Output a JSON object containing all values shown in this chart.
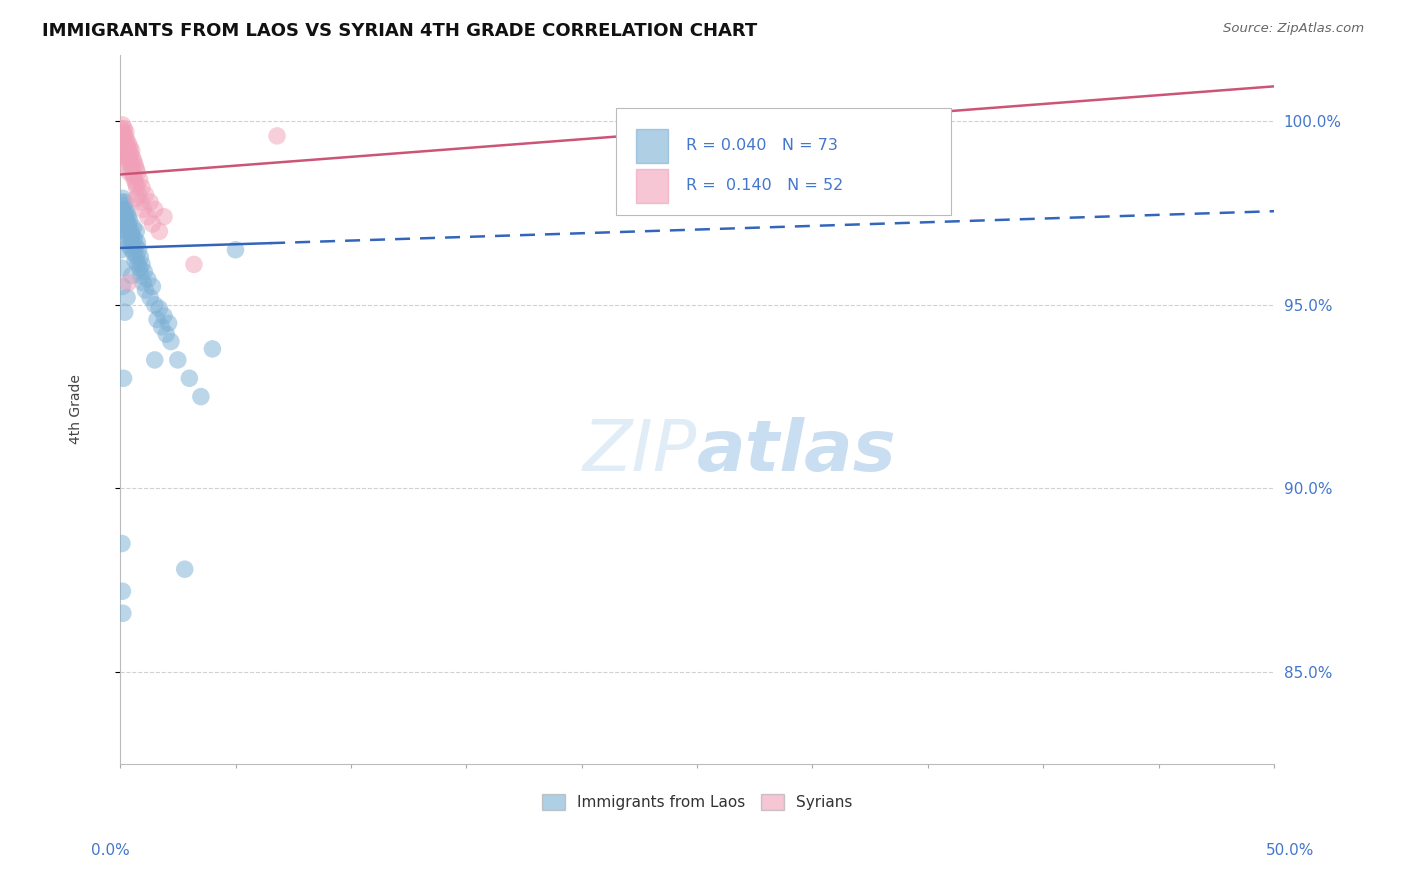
{
  "title": "IMMIGRANTS FROM LAOS VS SYRIAN 4TH GRADE CORRELATION CHART",
  "source": "Source: ZipAtlas.com",
  "ylabel": "4th Grade",
  "xlim": [
    0.0,
    50.0
  ],
  "ylim": [
    82.5,
    101.8
  ],
  "yticks": [
    85.0,
    90.0,
    95.0,
    100.0
  ],
  "R_laos": 0.04,
  "N_laos": 73,
  "R_syrian": 0.14,
  "N_syrian": 52,
  "blue_color": "#7bafd4",
  "pink_color": "#f0a0b8",
  "trend_blue": "#3366bb",
  "trend_pink": "#cc5577",
  "tick_color": "#4477cc",
  "background": "#ffffff",
  "grid_color": "#cccccc",
  "laos_points": [
    [
      0.05,
      97.8
    ],
    [
      0.08,
      97.5
    ],
    [
      0.1,
      97.6
    ],
    [
      0.1,
      97.2
    ],
    [
      0.12,
      97.9
    ],
    [
      0.15,
      97.7
    ],
    [
      0.15,
      97.3
    ],
    [
      0.18,
      97.5
    ],
    [
      0.2,
      97.8
    ],
    [
      0.2,
      97.2
    ],
    [
      0.22,
      97.4
    ],
    [
      0.25,
      97.6
    ],
    [
      0.25,
      97.0
    ],
    [
      0.28,
      97.3
    ],
    [
      0.3,
      97.5
    ],
    [
      0.3,
      96.8
    ],
    [
      0.32,
      97.1
    ],
    [
      0.35,
      97.4
    ],
    [
      0.35,
      96.9
    ],
    [
      0.38,
      97.2
    ],
    [
      0.4,
      97.0
    ],
    [
      0.4,
      96.6
    ],
    [
      0.42,
      97.3
    ],
    [
      0.45,
      96.8
    ],
    [
      0.48,
      97.0
    ],
    [
      0.5,
      96.5
    ],
    [
      0.52,
      96.9
    ],
    [
      0.55,
      96.7
    ],
    [
      0.58,
      97.1
    ],
    [
      0.6,
      96.4
    ],
    [
      0.62,
      96.8
    ],
    [
      0.65,
      96.2
    ],
    [
      0.68,
      96.6
    ],
    [
      0.7,
      97.0
    ],
    [
      0.72,
      96.3
    ],
    [
      0.75,
      96.7
    ],
    [
      0.78,
      96.1
    ],
    [
      0.8,
      96.5
    ],
    [
      0.85,
      96.0
    ],
    [
      0.88,
      96.3
    ],
    [
      0.9,
      95.8
    ],
    [
      0.95,
      96.1
    ],
    [
      1.0,
      95.6
    ],
    [
      1.05,
      95.9
    ],
    [
      1.1,
      95.4
    ],
    [
      1.2,
      95.7
    ],
    [
      1.3,
      95.2
    ],
    [
      1.4,
      95.5
    ],
    [
      1.5,
      95.0
    ],
    [
      1.6,
      94.6
    ],
    [
      1.7,
      94.9
    ],
    [
      1.8,
      94.4
    ],
    [
      1.9,
      94.7
    ],
    [
      2.0,
      94.2
    ],
    [
      2.1,
      94.5
    ],
    [
      2.2,
      94.0
    ],
    [
      2.5,
      93.5
    ],
    [
      3.0,
      93.0
    ],
    [
      3.5,
      92.5
    ],
    [
      4.0,
      93.8
    ],
    [
      5.0,
      96.5
    ],
    [
      0.05,
      96.5
    ],
    [
      0.08,
      96.0
    ],
    [
      0.1,
      95.5
    ],
    [
      0.08,
      88.5
    ],
    [
      0.1,
      87.2
    ],
    [
      0.12,
      86.6
    ],
    [
      0.5,
      95.8
    ],
    [
      1.5,
      93.5
    ],
    [
      2.8,
      87.8
    ],
    [
      0.3,
      95.2
    ],
    [
      0.2,
      94.8
    ],
    [
      0.15,
      93.0
    ]
  ],
  "syrian_points": [
    [
      0.05,
      99.8
    ],
    [
      0.08,
      99.6
    ],
    [
      0.1,
      99.9
    ],
    [
      0.1,
      99.4
    ],
    [
      0.12,
      99.7
    ],
    [
      0.15,
      99.5
    ],
    [
      0.15,
      99.1
    ],
    [
      0.18,
      99.8
    ],
    [
      0.2,
      99.6
    ],
    [
      0.2,
      99.2
    ],
    [
      0.22,
      99.4
    ],
    [
      0.25,
      99.7
    ],
    [
      0.25,
      99.0
    ],
    [
      0.28,
      99.5
    ],
    [
      0.3,
      99.3
    ],
    [
      0.3,
      98.8
    ],
    [
      0.32,
      99.1
    ],
    [
      0.35,
      99.4
    ],
    [
      0.35,
      98.9
    ],
    [
      0.38,
      99.2
    ],
    [
      0.4,
      99.0
    ],
    [
      0.4,
      98.6
    ],
    [
      0.42,
      99.3
    ],
    [
      0.45,
      99.1
    ],
    [
      0.48,
      98.8
    ],
    [
      0.5,
      99.2
    ],
    [
      0.52,
      98.6
    ],
    [
      0.55,
      99.0
    ],
    [
      0.58,
      98.5
    ],
    [
      0.6,
      98.9
    ],
    [
      0.62,
      98.4
    ],
    [
      0.65,
      98.8
    ],
    [
      0.68,
      98.3
    ],
    [
      0.7,
      98.7
    ],
    [
      0.72,
      98.2
    ],
    [
      0.75,
      98.6
    ],
    [
      0.8,
      98.0
    ],
    [
      0.85,
      98.4
    ],
    [
      0.9,
      97.8
    ],
    [
      0.95,
      98.2
    ],
    [
      1.0,
      97.6
    ],
    [
      1.1,
      98.0
    ],
    [
      1.2,
      97.4
    ],
    [
      1.3,
      97.8
    ],
    [
      1.4,
      97.2
    ],
    [
      1.5,
      97.6
    ],
    [
      1.7,
      97.0
    ],
    [
      1.9,
      97.4
    ],
    [
      3.2,
      96.1
    ],
    [
      0.35,
      95.6
    ],
    [
      6.8,
      99.6
    ],
    [
      0.7,
      97.9
    ]
  ],
  "laos_trend_x0": 0.0,
  "laos_trend_y0": 96.55,
  "laos_trend_x1": 50.0,
  "laos_trend_y1": 97.55,
  "laos_solid_end_x": 6.5,
  "syrian_trend_x0": 0.0,
  "syrian_trend_y0": 98.55,
  "syrian_trend_x1": 50.0,
  "syrian_trend_y1": 100.95
}
